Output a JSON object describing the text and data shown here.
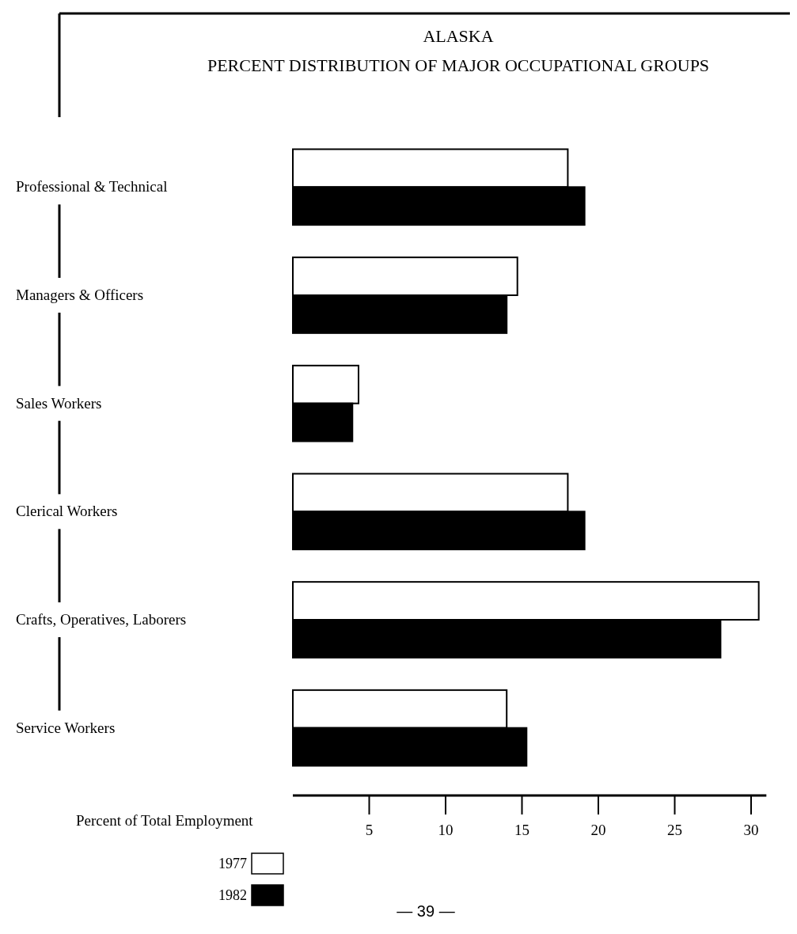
{
  "chart_data": {
    "type": "bar",
    "orientation": "horizontal",
    "title": "ALASKA",
    "subtitle": "PERCENT DISTRIBUTION OF MAJOR OCCUPATIONAL GROUPS",
    "xlabel": "Percent of Total Employment",
    "categories": [
      "Professional & Technical",
      "Managers & Officers",
      "Sales Workers",
      "Clerical Workers",
      "Crafts, Operatives, Laborers",
      "Service Workers"
    ],
    "series": [
      {
        "name": "1977",
        "color": "#ffffff",
        "values": [
          18.0,
          14.7,
          4.3,
          18.0,
          30.5,
          14.0
        ]
      },
      {
        "name": "1982",
        "color": "#000000",
        "values": [
          19.1,
          14.0,
          3.9,
          19.1,
          28.0,
          15.3
        ]
      }
    ],
    "xlim": [
      0,
      31
    ],
    "xticks": [
      5,
      10,
      15,
      20,
      25,
      30
    ],
    "legend": "bottom left",
    "grid": false,
    "annotations": [
      "— 39 —"
    ]
  }
}
